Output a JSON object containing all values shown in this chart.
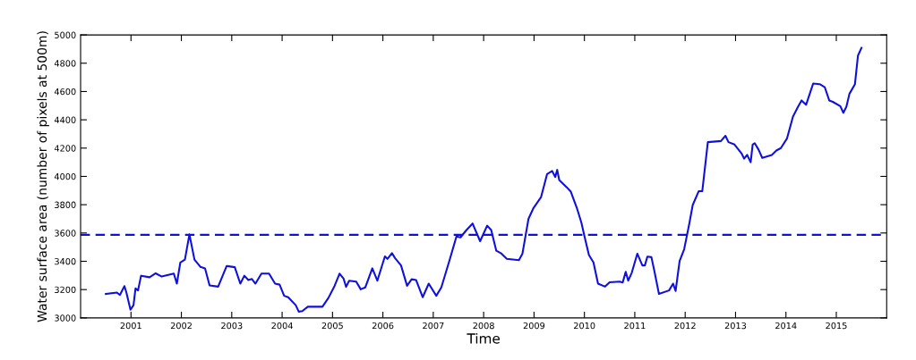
{
  "chart_data": {
    "type": "line",
    "xlabel": "Time",
    "ylabel": "Water surface area (number of pixels at 500m)",
    "x": [
      2000.5,
      2000.72,
      2000.78,
      2000.87,
      2000.91,
      2000.99,
      2001.05,
      2001.09,
      2001.14,
      2001.2,
      2001.37,
      2001.49,
      2001.61,
      2001.85,
      2001.91,
      2001.98,
      2002.07,
      2002.16,
      2002.26,
      2002.38,
      2002.47,
      2002.56,
      2002.73,
      2002.9,
      2003.06,
      2003.17,
      2003.25,
      2003.33,
      2003.4,
      2003.47,
      2003.59,
      2003.74,
      2003.86,
      2003.95,
      2004.04,
      2004.12,
      2004.27,
      2004.33,
      2004.4,
      2004.51,
      2004.8,
      2004.92,
      2005.04,
      2005.14,
      2005.22,
      2005.27,
      2005.33,
      2005.47,
      2005.56,
      2005.65,
      2005.79,
      2005.89,
      2006.04,
      2006.09,
      2006.18,
      2006.24,
      2006.36,
      2006.48,
      2006.57,
      2006.66,
      2006.79,
      2006.91,
      2007.06,
      2007.16,
      2007.31,
      2007.46,
      2007.54,
      2007.66,
      2007.78,
      2007.93,
      2008.07,
      2008.15,
      2008.25,
      2008.34,
      2008.46,
      2008.7,
      2008.77,
      2008.89,
      2008.99,
      2009.14,
      2009.26,
      2009.36,
      2009.42,
      2009.46,
      2009.5,
      2009.65,
      2009.73,
      2009.85,
      2009.94,
      2010.0,
      2010.09,
      2010.18,
      2010.27,
      2010.41,
      2010.5,
      2010.7,
      2010.76,
      2010.82,
      2010.87,
      2010.94,
      2011.05,
      2011.15,
      2011.2,
      2011.25,
      2011.33,
      2011.39,
      2011.48,
      2011.68,
      2011.76,
      2011.81,
      2011.89,
      2011.98,
      2012.08,
      2012.15,
      2012.27,
      2012.34,
      2012.45,
      2012.71,
      2012.8,
      2012.86,
      2012.98,
      2013.12,
      2013.17,
      2013.23,
      2013.3,
      2013.34,
      2013.38,
      2013.46,
      2013.53,
      2013.72,
      2013.81,
      2013.9,
      2014.02,
      2014.14,
      2014.24,
      2014.31,
      2014.4,
      2014.54,
      2014.67,
      2014.77,
      2014.86,
      2014.93,
      2015.08,
      2015.14,
      2015.2,
      2015.26,
      2015.37,
      2015.43,
      2015.5
    ],
    "series": [
      {
        "color": "#1010dd",
        "values": [
          3169,
          3179,
          3162,
          3225,
          3177,
          3058,
          3090,
          3208,
          3194,
          3298,
          3287,
          3315,
          3292,
          3313,
          3242,
          3392,
          3412,
          3590,
          3412,
          3360,
          3350,
          3229,
          3221,
          3367,
          3358,
          3242,
          3298,
          3267,
          3275,
          3242,
          3313,
          3313,
          3242,
          3235,
          3156,
          3146,
          3090,
          3044,
          3048,
          3079,
          3079,
          3142,
          3225,
          3313,
          3277,
          3219,
          3263,
          3256,
          3202,
          3215,
          3350,
          3263,
          3435,
          3417,
          3458,
          3423,
          3371,
          3227,
          3273,
          3267,
          3146,
          3242,
          3156,
          3215,
          3392,
          3575,
          3569,
          3621,
          3667,
          3542,
          3652,
          3621,
          3475,
          3458,
          3417,
          3408,
          3454,
          3700,
          3777,
          3854,
          4017,
          4038,
          3996,
          4046,
          3975,
          3923,
          3892,
          3777,
          3673,
          3579,
          3444,
          3392,
          3242,
          3221,
          3252,
          3256,
          3250,
          3325,
          3263,
          3319,
          3454,
          3371,
          3371,
          3433,
          3429,
          3329,
          3169,
          3194,
          3242,
          3190,
          3402,
          3485,
          3662,
          3798,
          3896,
          3896,
          4242,
          4250,
          4287,
          4242,
          4225,
          4162,
          4125,
          4152,
          4100,
          4225,
          4235,
          4187,
          4131,
          4152,
          4183,
          4200,
          4267,
          4423,
          4492,
          4537,
          4506,
          4656,
          4652,
          4631,
          4537,
          4527,
          4496,
          4450,
          4492,
          4583,
          4652,
          4854,
          4909
        ]
      }
    ],
    "xlim": [
      2000,
      2016
    ],
    "xticks": [
      2001,
      2002,
      2003,
      2004,
      2005,
      2006,
      2007,
      2008,
      2009,
      2010,
      2011,
      2012,
      2013,
      2014,
      2015
    ],
    "ylim": [
      3000,
      5000
    ],
    "yticks": [
      3000,
      3200,
      3400,
      3600,
      3800,
      4000,
      4200,
      4400,
      4600,
      4800,
      5000
    ],
    "ref_lines": [
      {
        "axis": "y",
        "value": 3587,
        "color": "#1010dd",
        "line_style": "dashed"
      }
    ],
    "grid": false,
    "line_style": "solid",
    "marker": "none"
  }
}
